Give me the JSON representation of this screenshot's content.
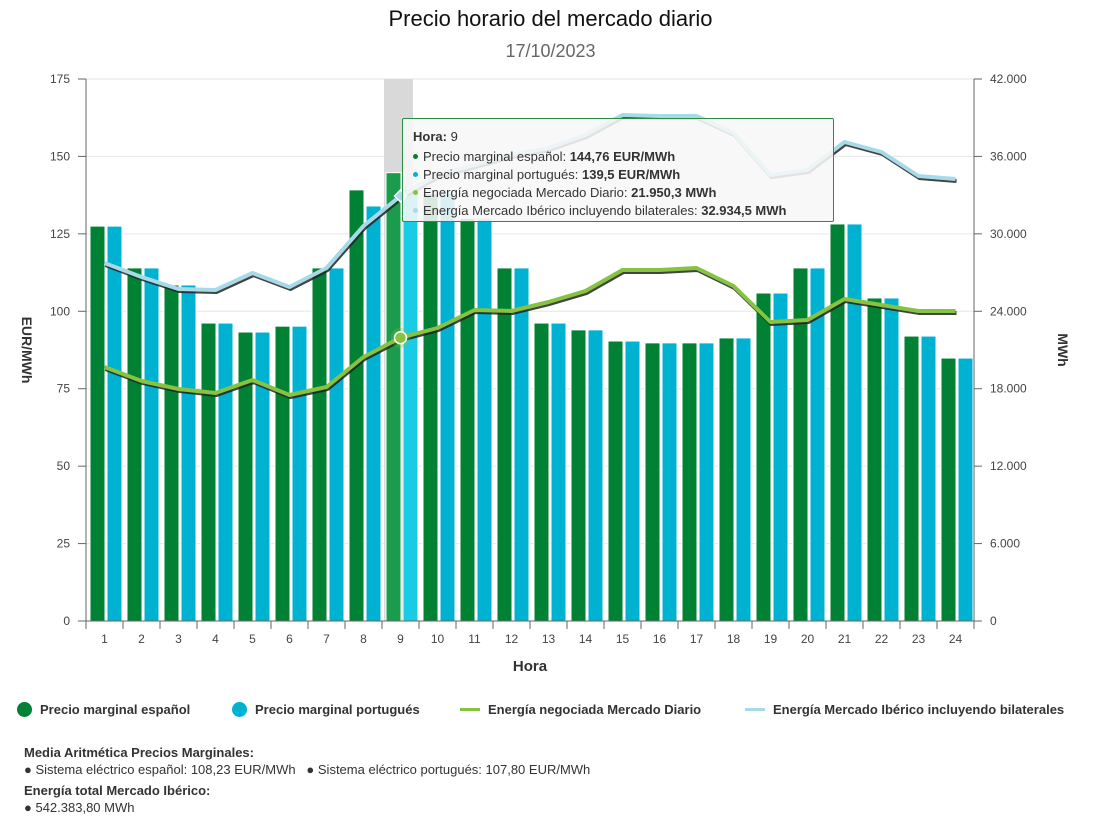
{
  "header": {
    "title": "Precio horario del mercado diario",
    "date": "17/10/2023"
  },
  "chart_data": {
    "type": "bar",
    "title": "Precio horario del mercado diario",
    "subtitle": "17/10/2023",
    "xlabel": "Hora",
    "ylabel": "EUR/MWh",
    "y2label": "MWh",
    "ylim": [
      0,
      175
    ],
    "y2lim": [
      0,
      42000
    ],
    "yticks": [
      "0",
      "25",
      "50",
      "75",
      "100",
      "125",
      "150",
      "175"
    ],
    "y2ticks": [
      "0",
      "6.000",
      "12.000",
      "18.000",
      "24.000",
      "30.000",
      "36.000",
      "42.000"
    ],
    "grid": true,
    "legend_position": "bottom",
    "categories": [
      "1",
      "2",
      "3",
      "4",
      "5",
      "6",
      "7",
      "8",
      "9",
      "10",
      "11",
      "12",
      "13",
      "14",
      "15",
      "16",
      "17",
      "18",
      "19",
      "20",
      "21",
      "22",
      "23",
      "24"
    ],
    "highlighted_category": "9",
    "series": [
      {
        "name": "Precio marginal español",
        "kind": "bar",
        "axis": "left",
        "color": "#008133",
        "values": [
          127.5,
          114,
          108.5,
          96.2,
          93.3,
          95.2,
          114,
          139.2,
          144.76,
          138,
          130,
          114,
          96.2,
          94,
          90.4,
          89.8,
          89.8,
          91.4,
          105.9,
          114,
          128.2,
          104.3,
          92,
          84.9
        ]
      },
      {
        "name": "Precio marginal portugués",
        "kind": "bar",
        "axis": "left",
        "color": "#00b2d2",
        "values": [
          127.5,
          114,
          108.5,
          96.2,
          93.3,
          95.2,
          114,
          134,
          139.5,
          138,
          130,
          114,
          96.2,
          94,
          90.4,
          89.8,
          89.8,
          91.4,
          105.9,
          114,
          128.2,
          104.3,
          92,
          84.9
        ]
      },
      {
        "name": "Energía negociada Mercado Diario",
        "kind": "line",
        "axis": "right",
        "color": "#85c341",
        "values": [
          19683,
          18598,
          17978,
          17668,
          18675,
          17513,
          18133,
          20457,
          21950.3,
          22705,
          24100,
          24022,
          24720,
          25572,
          27200,
          27200,
          27355,
          25960,
          23170,
          23325,
          24952,
          24487,
          24022,
          24022
        ]
      },
      {
        "name": "Energía Mercado Ibérico incluyendo bilaterales",
        "kind": "line",
        "axis": "right",
        "color": "#a7dae8",
        "values": [
          27742,
          26657,
          25727,
          25650,
          26967,
          25882,
          27355,
          30609,
          32934.5,
          34561,
          35336,
          36111,
          36653,
          37661,
          39211,
          39133,
          39133,
          37816,
          34561,
          34948,
          37118,
          36343,
          34483,
          34250
        ]
      }
    ]
  },
  "tooltip": {
    "hora_label": "Hora:",
    "hora_value": "9",
    "rows": [
      {
        "label": "Precio marginal español: ",
        "value": "144,76 EUR/MWh",
        "color": "#008133"
      },
      {
        "label": "Precio marginal portugués: ",
        "value": "139,5 EUR/MWh",
        "color": "#00b2d2"
      },
      {
        "label": "Energía negociada Mercado Diario: ",
        "value": "21.950,3 MWh",
        "color": "#85c341"
      },
      {
        "label": "Energía Mercado Ibérico incluyendo bilaterales: ",
        "value": "32.934,5 MWh",
        "color": "#a7dae8"
      }
    ]
  },
  "legend": {
    "items": [
      {
        "label": "Precio marginal español",
        "color": "#008133",
        "shape": "circle"
      },
      {
        "label": "Precio marginal portugués",
        "color": "#00b2d2",
        "shape": "circle"
      },
      {
        "label": "Energía negociada Mercado Diario",
        "color": "#85c341",
        "shape": "line"
      },
      {
        "label": "Energía Mercado Ibérico incluyendo bilaterales",
        "color": "#a7dae8",
        "shape": "line"
      }
    ]
  },
  "summary": {
    "avg_heading": "Media Aritmética Precios Marginales:",
    "avg_es": "● Sistema eléctrico español: 108,23 EUR/MWh",
    "avg_pt": "● Sistema eléctrico portugués: 107,80 EUR/MWh",
    "total_heading": "Energía total Mercado Ibérico:",
    "total_value": "● 542.383,80 MWh"
  }
}
